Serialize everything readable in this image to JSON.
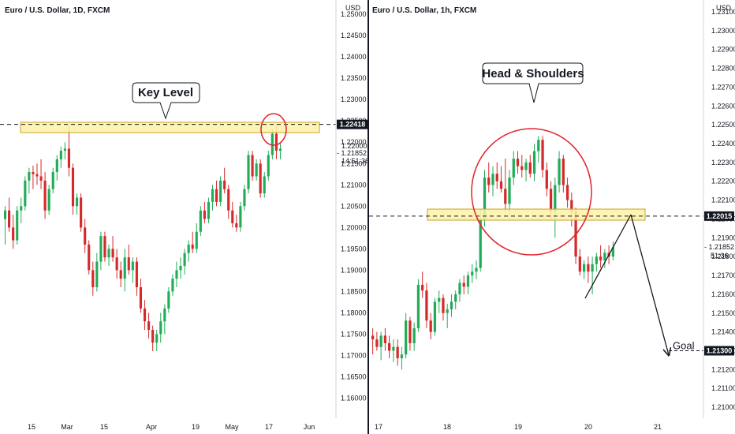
{
  "colors": {
    "up": "#22ab58",
    "down": "#d42a2a",
    "zone_fill": "#fdf1a6",
    "zone_stroke": "#c9a227",
    "circle": "#e0242b",
    "tag_bg": "#131722",
    "axis_line": "#131722"
  },
  "chart_data": [
    {
      "type": "candlestick",
      "title": "Euro / U.S. Dollar, 1D, FXCM",
      "currency_label": "USD",
      "ylim": [
        1.1575,
        1.2515
      ],
      "y_ticks": [
        "1.25000",
        "1.24500",
        "1.24000",
        "1.23500",
        "1.23000",
        "1.22500",
        "1.22000",
        "1.21500",
        "1.21000",
        "1.20500",
        "1.20000",
        "1.19500",
        "1.19000",
        "1.18500",
        "1.18000",
        "1.17500",
        "1.17000",
        "1.16500",
        "1.16000"
      ],
      "x_ticks": [
        "15",
        "Mar",
        "15",
        "Apr",
        "19",
        "May",
        "17",
        "Jun"
      ],
      "key_level": 1.22418,
      "key_level_label": "1.22418",
      "last_price_label": "1.21852",
      "countdown_label": "14:51:36",
      "partial_tick_label": "1.22000",
      "annotation": "Key Level",
      "ohlc": [
        [
          1.202,
          1.205,
          1.196,
          1.204
        ],
        [
          1.204,
          1.207,
          1.199,
          1.2
        ],
        [
          1.2,
          1.203,
          1.195,
          1.197
        ],
        [
          1.197,
          1.205,
          1.196,
          1.204
        ],
        [
          1.204,
          1.207,
          1.201,
          1.205
        ],
        [
          1.205,
          1.212,
          1.204,
          1.211
        ],
        [
          1.211,
          1.214,
          1.208,
          1.213
        ],
        [
          1.213,
          1.2145,
          1.209,
          1.2125
        ],
        [
          1.2125,
          1.215,
          1.21,
          1.212
        ],
        [
          1.212,
          1.216,
          1.209,
          1.211
        ],
        [
          1.211,
          1.213,
          1.202,
          1.204
        ],
        [
          1.204,
          1.21,
          1.203,
          1.209
        ],
        [
          1.209,
          1.214,
          1.208,
          1.213
        ],
        [
          1.213,
          1.217,
          1.211,
          1.216
        ],
        [
          1.216,
          1.219,
          1.214,
          1.218
        ],
        [
          1.218,
          1.22,
          1.216,
          1.2185
        ],
        [
          1.2185,
          1.2242,
          1.212,
          1.214
        ],
        [
          1.214,
          1.215,
          1.203,
          1.205
        ],
        [
          1.205,
          1.208,
          1.203,
          1.207
        ],
        [
          1.207,
          1.208,
          1.199,
          1.2
        ],
        [
          1.2,
          1.202,
          1.194,
          1.196
        ],
        [
          1.196,
          1.197,
          1.189,
          1.19
        ],
        [
          1.19,
          1.192,
          1.184,
          1.186
        ],
        [
          1.186,
          1.194,
          1.185,
          1.192
        ],
        [
          1.192,
          1.199,
          1.19,
          1.198
        ],
        [
          1.198,
          1.199,
          1.192,
          1.193
        ],
        [
          1.193,
          1.196,
          1.191,
          1.195
        ],
        [
          1.195,
          1.198,
          1.192,
          1.193
        ],
        [
          1.193,
          1.195,
          1.188,
          1.19
        ],
        [
          1.19,
          1.192,
          1.186,
          1.188
        ],
        [
          1.188,
          1.195,
          1.185,
          1.193
        ],
        [
          1.193,
          1.196,
          1.189,
          1.19
        ],
        [
          1.19,
          1.193,
          1.187,
          1.192
        ],
        [
          1.192,
          1.193,
          1.184,
          1.186
        ],
        [
          1.186,
          1.188,
          1.18,
          1.181
        ],
        [
          1.181,
          1.183,
          1.176,
          1.178
        ],
        [
          1.178,
          1.18,
          1.174,
          1.176
        ],
        [
          1.176,
          1.177,
          1.171,
          1.173
        ],
        [
          1.173,
          1.176,
          1.171,
          1.175
        ],
        [
          1.175,
          1.18,
          1.173,
          1.178
        ],
        [
          1.178,
          1.182,
          1.175,
          1.181
        ],
        [
          1.181,
          1.186,
          1.18,
          1.185
        ],
        [
          1.185,
          1.189,
          1.184,
          1.188
        ],
        [
          1.188,
          1.192,
          1.186,
          1.19
        ],
        [
          1.19,
          1.193,
          1.188,
          1.191
        ],
        [
          1.191,
          1.195,
          1.189,
          1.194
        ],
        [
          1.194,
          1.197,
          1.192,
          1.196
        ],
        [
          1.196,
          1.199,
          1.194,
          1.195
        ],
        [
          1.195,
          1.201,
          1.194,
          1.199
        ],
        [
          1.199,
          1.205,
          1.198,
          1.204
        ],
        [
          1.204,
          1.206,
          1.201,
          1.202
        ],
        [
          1.202,
          1.207,
          1.201,
          1.206
        ],
        [
          1.206,
          1.21,
          1.204,
          1.209
        ],
        [
          1.209,
          1.211,
          1.205,
          1.206
        ],
        [
          1.206,
          1.212,
          1.205,
          1.211
        ],
        [
          1.211,
          1.214,
          1.208,
          1.209
        ],
        [
          1.209,
          1.21,
          1.202,
          1.204
        ],
        [
          1.204,
          1.206,
          1.2,
          1.201
        ],
        [
          1.201,
          1.203,
          1.199,
          1.2
        ],
        [
          1.2,
          1.206,
          1.199,
          1.205
        ],
        [
          1.205,
          1.21,
          1.204,
          1.209
        ],
        [
          1.209,
          1.218,
          1.208,
          1.217
        ],
        [
          1.217,
          1.218,
          1.211,
          1.212
        ],
        [
          1.212,
          1.216,
          1.211,
          1.215
        ],
        [
          1.215,
          1.216,
          1.207,
          1.208
        ],
        [
          1.208,
          1.213,
          1.207,
          1.212
        ],
        [
          1.212,
          1.218,
          1.211,
          1.217
        ],
        [
          1.217,
          1.223,
          1.216,
          1.222
        ],
        [
          1.222,
          1.2242,
          1.216,
          1.218
        ],
        [
          1.218,
          1.22,
          1.216,
          1.2185
        ]
      ]
    },
    {
      "type": "candlestick",
      "title": "Euro / U.S. Dollar, 1h, FXCM",
      "currency_label": "USD",
      "ylim": [
        1.2095,
        1.2315
      ],
      "y_ticks": [
        "1.23100",
        "1.23000",
        "1.22900",
        "1.22800",
        "1.22700",
        "1.22600",
        "1.22500",
        "1.22400",
        "1.22300",
        "1.22200",
        "1.22100",
        "1.22000",
        "1.21900",
        "1.21800",
        "1.21700",
        "1.21600",
        "1.21500",
        "1.21400",
        "1.21300",
        "1.21200",
        "1.21100",
        "1.21000"
      ],
      "x_ticks": [
        "17",
        "18",
        "19",
        "20",
        "21"
      ],
      "neckline": 1.22015,
      "neckline_label": "1.22015",
      "last_price_label": "1.21852",
      "countdown_label": "51:36",
      "target": 1.213,
      "target_label": "1.21300",
      "annotation": "Head & Shoulders",
      "goal_label": "Goal",
      "ohlc": [
        [
          1.2138,
          1.2142,
          1.2128,
          1.2136
        ],
        [
          1.2136,
          1.214,
          1.213,
          1.2132
        ],
        [
          1.2132,
          1.214,
          1.2125,
          1.2138
        ],
        [
          1.2138,
          1.2142,
          1.213,
          1.2134
        ],
        [
          1.2134,
          1.2138,
          1.2126,
          1.213
        ],
        [
          1.213,
          1.2136,
          1.2124,
          1.2132
        ],
        [
          1.2132,
          1.2136,
          1.2122,
          1.2126
        ],
        [
          1.2126,
          1.2132,
          1.212,
          1.2128
        ],
        [
          1.2128,
          1.215,
          1.2126,
          1.2146
        ],
        [
          1.2146,
          1.2148,
          1.213,
          1.2134
        ],
        [
          1.2134,
          1.2145,
          1.213,
          1.2142
        ],
        [
          1.2142,
          1.2168,
          1.214,
          1.2165
        ],
        [
          1.2165,
          1.2172,
          1.2158,
          1.2162
        ],
        [
          1.2162,
          1.2166,
          1.2142,
          1.2146
        ],
        [
          1.2146,
          1.215,
          1.2136,
          1.214
        ],
        [
          1.214,
          1.2158,
          1.2138,
          1.2156
        ],
        [
          1.2156,
          1.2162,
          1.215,
          1.2158
        ],
        [
          1.2158,
          1.216,
          1.2146,
          1.215
        ],
        [
          1.215,
          1.2155,
          1.2142,
          1.2152
        ],
        [
          1.2152,
          1.216,
          1.2148,
          1.2156
        ],
        [
          1.2156,
          1.2162,
          1.2152,
          1.216
        ],
        [
          1.216,
          1.2168,
          1.2156,
          1.2166
        ],
        [
          1.2166,
          1.217,
          1.216,
          1.2164
        ],
        [
          1.2164,
          1.2172,
          1.216,
          1.217
        ],
        [
          1.217,
          1.2176,
          1.2166,
          1.2172
        ],
        [
          1.2172,
          1.2178,
          1.2168,
          1.2174
        ],
        [
          1.2174,
          1.2205,
          1.2172,
          1.22
        ],
        [
          1.22,
          1.2226,
          1.2196,
          1.2222
        ],
        [
          1.2222,
          1.223,
          1.2214,
          1.2218
        ],
        [
          1.2218,
          1.2228,
          1.2212,
          1.2224
        ],
        [
          1.2224,
          1.223,
          1.2216,
          1.222
        ],
        [
          1.222,
          1.2228,
          1.2214,
          1.2216
        ],
        [
          1.2216,
          1.2232,
          1.2204,
          1.2208
        ],
        [
          1.2208,
          1.2226,
          1.22,
          1.2222
        ],
        [
          1.2222,
          1.2236,
          1.2218,
          1.2232
        ],
        [
          1.2232,
          1.2236,
          1.2224,
          1.2228
        ],
        [
          1.2228,
          1.2234,
          1.2222,
          1.2226
        ],
        [
          1.2226,
          1.2232,
          1.222,
          1.223
        ],
        [
          1.223,
          1.2234,
          1.2222,
          1.2224
        ],
        [
          1.2224,
          1.224,
          1.222,
          1.2236
        ],
        [
          1.2236,
          1.2244,
          1.223,
          1.2242
        ],
        [
          1.2242,
          1.2244,
          1.2222,
          1.2226
        ],
        [
          1.2226,
          1.223,
          1.2212,
          1.2216
        ],
        [
          1.2216,
          1.222,
          1.22,
          1.2204
        ],
        [
          1.2204,
          1.2222,
          1.219,
          1.2218
        ],
        [
          1.2218,
          1.2236,
          1.2214,
          1.2232
        ],
        [
          1.2232,
          1.2234,
          1.2214,
          1.2218
        ],
        [
          1.2218,
          1.2222,
          1.2206,
          1.221
        ],
        [
          1.221,
          1.2214,
          1.2196,
          1.2204
        ],
        [
          1.2204,
          1.2206,
          1.2176,
          1.218
        ],
        [
          1.218,
          1.2184,
          1.217,
          1.2172
        ],
        [
          1.2172,
          1.2178,
          1.2168,
          1.2176
        ],
        [
          1.2176,
          1.218,
          1.2166,
          1.2172
        ],
        [
          1.2172,
          1.218,
          1.216,
          1.2176
        ],
        [
          1.2176,
          1.2182,
          1.2172,
          1.218
        ],
        [
          1.218,
          1.2186,
          1.2174,
          1.2178
        ],
        [
          1.2178,
          1.2184,
          1.2174,
          1.2182
        ],
        [
          1.2182,
          1.2186,
          1.2176,
          1.218
        ],
        [
          1.218,
          1.2188,
          1.2178,
          1.2185
        ]
      ]
    }
  ]
}
